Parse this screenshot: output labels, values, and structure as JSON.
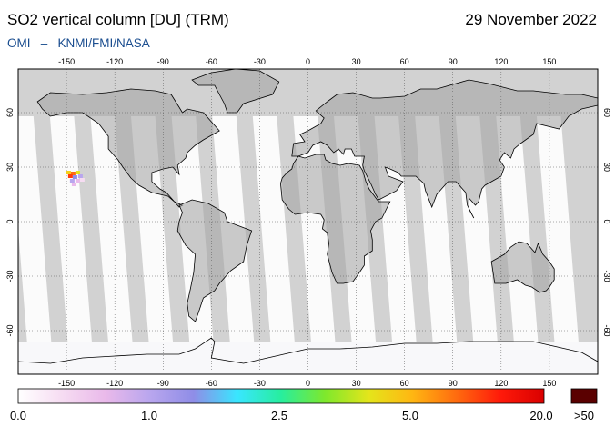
{
  "header": {
    "title": "SO2 vertical column [DU] (TRM)",
    "date": "29 November 2022",
    "credit_instrument": "OMI",
    "credit_separator": "–",
    "credit_agencies": "KNMI/FMI/NASA"
  },
  "map": {
    "projection": "equirectangular",
    "lon_ticks": [
      "-150",
      "-120",
      "-90",
      "-60",
      "-30",
      "0",
      "30",
      "60",
      "90",
      "120",
      "150"
    ],
    "lat_ticks_left": [
      "60",
      "30",
      "0",
      "-30",
      "-60"
    ],
    "lat_ticks_right": [
      "60",
      "30",
      "0",
      "-30",
      "-60"
    ],
    "colors": {
      "no_data": "#d2d2d2",
      "land_no_data": "#a0a0a0",
      "swath_gap": "#d4d4d4",
      "ocean_data": "#fbfbfb",
      "coastline": "#000000",
      "graticule": "#555555"
    },
    "features": [
      {
        "label": "SO2 plume",
        "lon": -145,
        "lat": 25
      }
    ]
  },
  "colorbar": {
    "labels": [
      "0.0",
      "1.0",
      "2.5",
      "5.0",
      "20.0"
    ],
    "overflow_label": ">50",
    "stops": [
      "#ffffff",
      "#f6dcf2",
      "#e9b9ea",
      "#b9a6ee",
      "#8f8de7",
      "#39e6ff",
      "#27ee9e",
      "#7ee82c",
      "#e4e51b",
      "#ffb612",
      "#ff6b0f",
      "#ff1a0a",
      "#d90000"
    ],
    "overflow_color": "#5a0000"
  }
}
